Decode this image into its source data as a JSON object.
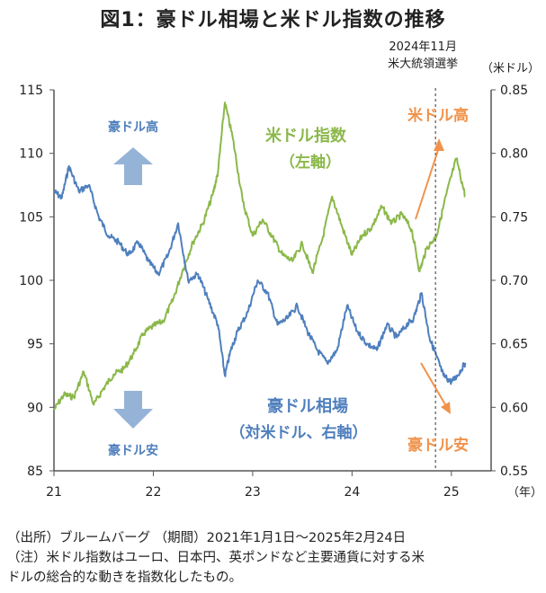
{
  "title": "図1：豪ドル相場と米ドル指数の推移",
  "chart_data": {
    "type": "line",
    "x_label": "（年）",
    "x_ticks": [
      "21",
      "22",
      "23",
      "24",
      "25"
    ],
    "x_range": [
      2021.0,
      2025.4
    ],
    "y_left": {
      "range": [
        85,
        115
      ],
      "ticks": [
        "85",
        "90",
        "95",
        "100",
        "105",
        "110",
        "115"
      ]
    },
    "y_right": {
      "unit": "（米ドル）",
      "range": [
        0.55,
        0.85
      ],
      "ticks": [
        "0.55",
        "0.60",
        "0.65",
        "0.70",
        "0.75",
        "0.80",
        "0.85"
      ]
    },
    "series": [
      {
        "name": "米ドル指数\n（左軸）",
        "axis": "left",
        "color": "#8bb84a",
        "x": [
          2021.0,
          2021.1,
          2021.2,
          2021.3,
          2021.4,
          2021.5,
          2021.6,
          2021.7,
          2021.8,
          2021.9,
          2022.0,
          2022.1,
          2022.2,
          2022.3,
          2022.4,
          2022.5,
          2022.6,
          2022.65,
          2022.72,
          2022.8,
          2022.9,
          2023.0,
          2023.1,
          2023.2,
          2023.3,
          2023.4,
          2023.5,
          2023.6,
          2023.7,
          2023.8,
          2023.9,
          2024.0,
          2024.1,
          2024.2,
          2024.3,
          2024.4,
          2024.5,
          2024.6,
          2024.68,
          2024.75,
          2024.85,
          2024.95,
          2025.05,
          2025.14
        ],
        "values": [
          89.8,
          91.0,
          90.8,
          92.8,
          90.2,
          91.5,
          92.6,
          93.0,
          94.2,
          95.8,
          96.4,
          96.8,
          98.5,
          100.9,
          103.0,
          104.5,
          106.8,
          108.5,
          114.0,
          111.2,
          106.2,
          103.5,
          104.8,
          103.4,
          102.0,
          101.5,
          102.9,
          100.6,
          103.2,
          106.6,
          104.2,
          102.0,
          103.5,
          104.2,
          105.8,
          104.5,
          105.2,
          104.0,
          100.7,
          102.5,
          103.5,
          106.8,
          109.6,
          106.6
        ]
      },
      {
        "name": "豪ドル相場\n（対米ドル、右軸）",
        "axis": "right",
        "color": "#4f7fbd",
        "x": [
          2021.0,
          2021.08,
          2021.15,
          2021.25,
          2021.35,
          2021.45,
          2021.55,
          2021.65,
          2021.75,
          2021.85,
          2021.95,
          2022.05,
          2022.15,
          2022.25,
          2022.35,
          2022.45,
          2022.55,
          2022.65,
          2022.72,
          2022.78,
          2022.85,
          2022.95,
          2023.05,
          2023.15,
          2023.25,
          2023.35,
          2023.45,
          2023.55,
          2023.65,
          2023.75,
          2023.85,
          2023.95,
          2024.05,
          2024.15,
          2024.25,
          2024.35,
          2024.45,
          2024.55,
          2024.62,
          2024.7,
          2024.78,
          2024.85,
          2024.92,
          2025.0,
          2025.06,
          2025.14
        ],
        "values": [
          0.77,
          0.765,
          0.79,
          0.77,
          0.775,
          0.75,
          0.735,
          0.73,
          0.72,
          0.73,
          0.715,
          0.705,
          0.72,
          0.745,
          0.7,
          0.705,
          0.685,
          0.665,
          0.625,
          0.645,
          0.66,
          0.675,
          0.7,
          0.69,
          0.665,
          0.67,
          0.68,
          0.66,
          0.645,
          0.635,
          0.645,
          0.68,
          0.66,
          0.65,
          0.645,
          0.665,
          0.655,
          0.665,
          0.67,
          0.69,
          0.655,
          0.64,
          0.625,
          0.62,
          0.625,
          0.635
        ]
      }
    ],
    "reference_line": {
      "x": 2024.84,
      "label_line1": "2024年11月",
      "label_line2": "米大統領選挙"
    },
    "annotations": {
      "aud_up": "豪ドル高",
      "aud_down": "豪ドル安",
      "usd_up": "米ドル高",
      "usd_down_aud": "豪ドル安"
    },
    "grid": false,
    "colors": {
      "usd_index": "#8bb84a",
      "aud": "#4f7fbd",
      "accent": "#f0924a",
      "big_arrow": "#95b3d7",
      "axis": "#555555"
    }
  },
  "notes": {
    "line1": "（出所）ブルームバーグ （期間）2021年1月1日～2025年2月24日",
    "line2": "（注）米ドル指数はユーロ、日本円、英ポンドなど主要通貨に対する米",
    "line3": "ドルの総合的な動きを指数化したもの。"
  }
}
